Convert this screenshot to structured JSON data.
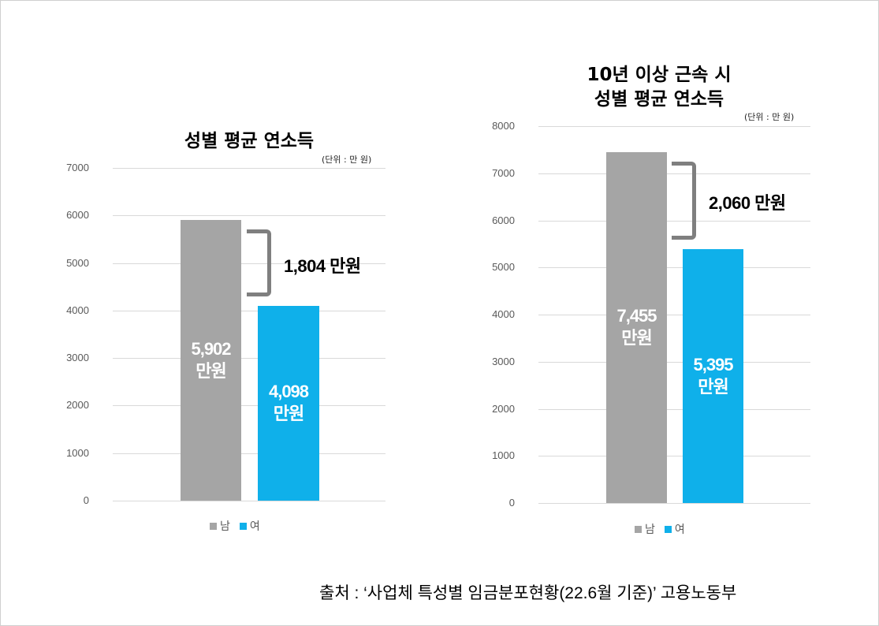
{
  "colors": {
    "male": "#a5a5a5",
    "female": "#0fb0ea",
    "bracket": "#7f7f7f"
  },
  "chart_data": [
    {
      "type": "bar",
      "title": "성별 평균 연소득",
      "unit": "(단위 : 만 원)",
      "ylim": [
        0,
        7000
      ],
      "yticks": [
        "0",
        "1000",
        "2000",
        "3000",
        "4000",
        "5000",
        "6000",
        "7000"
      ],
      "categories": [
        "남",
        "여"
      ],
      "values": [
        5902,
        4098
      ],
      "labels": [
        {
          "num": "5,902",
          "unit": "만원"
        },
        {
          "num": "4,098",
          "unit": "만원"
        }
      ],
      "difference": "1,804 만원",
      "diff_range": [
        4098,
        5902
      ],
      "legend": [
        "남",
        "여"
      ],
      "legend_position": "bottom"
    },
    {
      "type": "bar",
      "title_lines": [
        "10년 이상 근속 시",
        "성별 평균 연소득"
      ],
      "unit": "(단위 : 만 원)",
      "ylim": [
        0,
        8000
      ],
      "yticks": [
        "0",
        "1000",
        "2000",
        "3000",
        "4000",
        "5000",
        "6000",
        "7000",
        "8000"
      ],
      "categories": [
        "남",
        "여"
      ],
      "values": [
        7455,
        5395
      ],
      "labels": [
        {
          "num": "7,455",
          "unit": "만원"
        },
        {
          "num": "5,395",
          "unit": "만원"
        }
      ],
      "difference": "2,060 만원",
      "diff_range": [
        5395,
        7455
      ],
      "legend": [
        "남",
        "여"
      ],
      "legend_position": "bottom"
    }
  ],
  "source": "출처 : ‘사업체 특성별 임금분포현황(22.6월 기준)’ 고용노동부"
}
